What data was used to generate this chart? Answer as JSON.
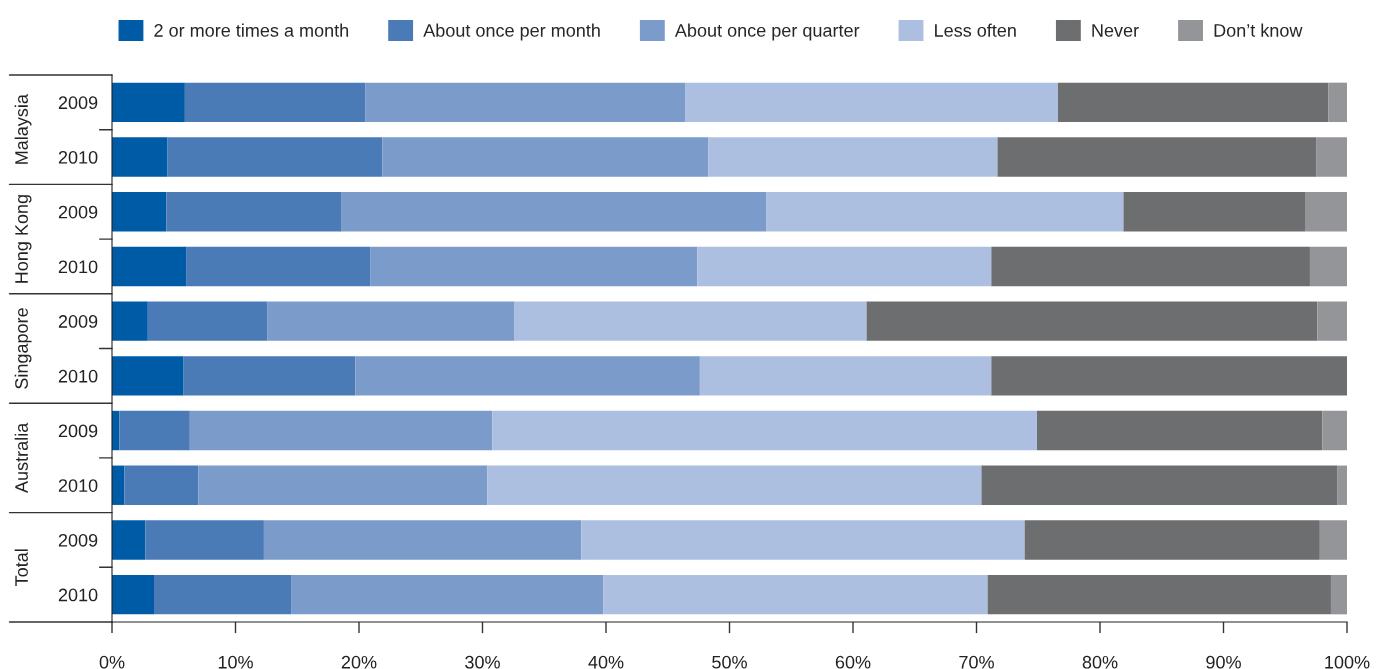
{
  "chart_data": {
    "type": "bar",
    "orientation": "horizontal",
    "stacked": true,
    "categories": [
      "2009",
      "2010",
      "2009",
      "2010",
      "2009",
      "2010",
      "2009",
      "2010",
      "2009",
      "2010"
    ],
    "annotations": [
      "Malaysia",
      "Hong Kong",
      "Singapore",
      "Australia",
      "Total"
    ],
    "series": [
      {
        "name": "2 or more times a month",
        "color": "#005ba6",
        "values": [
          5.9,
          4.5,
          4.4,
          6.0,
          2.9,
          5.8,
          0.6,
          1.0,
          2.7,
          3.4
        ]
      },
      {
        "name": "About once per month",
        "color": "#4a7bb7",
        "values": [
          14.6,
          17.4,
          14.2,
          14.9,
          9.7,
          13.9,
          5.7,
          6.0,
          9.6,
          11.1
        ]
      },
      {
        "name": "About once per quarter",
        "color": "#7b9bcb",
        "values": [
          25.9,
          26.4,
          34.4,
          26.5,
          20.0,
          27.9,
          24.5,
          23.4,
          25.7,
          25.3
        ]
      },
      {
        "name": "Less often",
        "color": "#adbfe0",
        "values": [
          30.2,
          23.4,
          28.9,
          23.8,
          28.5,
          23.6,
          44.1,
          40.0,
          35.9,
          31.1
        ]
      },
      {
        "name": "Never",
        "color": "#6d6e70",
        "values": [
          21.9,
          25.8,
          14.7,
          25.8,
          36.5,
          28.8,
          23.1,
          28.8,
          23.9,
          27.8
        ]
      },
      {
        "name": "Don’t know",
        "color": "#939598",
        "values": [
          1.5,
          2.5,
          3.4,
          3.0,
          2.4,
          0,
          2.0,
          0.8,
          2.2,
          1.3
        ]
      }
    ],
    "xlim": [
      0,
      100
    ],
    "xticks": [
      {
        "value": 0,
        "label": "0%"
      },
      {
        "value": 10,
        "label": "10%"
      },
      {
        "value": 20,
        "label": "20%"
      },
      {
        "value": 30,
        "label": "30%"
      },
      {
        "value": 40,
        "label": "40%"
      },
      {
        "value": 50,
        "label": "50%"
      },
      {
        "value": 60,
        "label": "60%"
      },
      {
        "value": 70,
        "label": "70%"
      },
      {
        "value": 80,
        "label": "80%"
      },
      {
        "value": 90,
        "label": "90%"
      },
      {
        "value": 100,
        "label": "100%"
      }
    ],
    "grid": false,
    "legend": "top"
  }
}
